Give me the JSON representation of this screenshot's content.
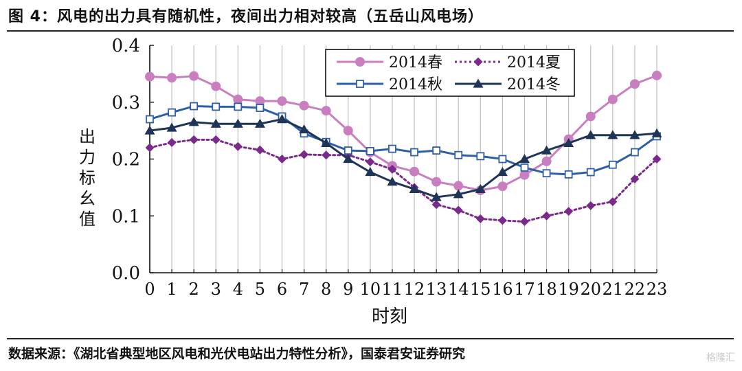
{
  "figure": {
    "title": "图 4：风电的出力具有随机性，夜间出力相对较高（五岳山风电场）",
    "source": "数据来源：《湖北省典型地区风电和光伏电站出力特性分析》，国泰君安证券研究",
    "watermark": "格隆汇"
  },
  "chart_data": {
    "type": "line",
    "title": "",
    "xlabel": "时刻",
    "ylabel": "出力标幺值",
    "x": [
      0,
      1,
      2,
      3,
      4,
      5,
      6,
      7,
      8,
      9,
      10,
      11,
      12,
      13,
      14,
      15,
      16,
      17,
      18,
      19,
      20,
      21,
      22,
      23
    ],
    "xticks": [
      "0",
      "1",
      "2",
      "3",
      "4",
      "5",
      "6",
      "7",
      "8",
      "9",
      "10",
      "11",
      "12",
      "13",
      "14",
      "15",
      "16",
      "17",
      "18",
      "19",
      "20",
      "21",
      "22",
      "23"
    ],
    "ylim": [
      0,
      0.4
    ],
    "yticks": [
      "0.0",
      "0.1",
      "0.2",
      "0.3",
      "0.4"
    ],
    "grid": "vertical",
    "legend_position": "top-center",
    "series": [
      {
        "name": "2014春",
        "color": "#c97fbf",
        "marker": "circle",
        "dash": "solid",
        "values": [
          0.345,
          0.343,
          0.346,
          0.328,
          0.305,
          0.302,
          0.302,
          0.294,
          0.285,
          0.25,
          0.212,
          0.188,
          0.178,
          0.16,
          0.153,
          0.145,
          0.152,
          0.172,
          0.196,
          0.235,
          0.275,
          0.305,
          0.332,
          0.347
        ]
      },
      {
        "name": "2014夏",
        "color": "#7a2a8a",
        "marker": "diamond",
        "dash": "dotted",
        "values": [
          0.22,
          0.229,
          0.234,
          0.234,
          0.222,
          0.216,
          0.2,
          0.208,
          0.207,
          0.207,
          0.195,
          0.182,
          0.15,
          0.12,
          0.11,
          0.095,
          0.092,
          0.09,
          0.1,
          0.108,
          0.118,
          0.125,
          0.165,
          0.2
        ]
      },
      {
        "name": "2014秋",
        "color": "#2e5fa6",
        "marker": "square",
        "dash": "solid",
        "values": [
          0.27,
          0.282,
          0.293,
          0.292,
          0.292,
          0.29,
          0.275,
          0.245,
          0.23,
          0.215,
          0.214,
          0.218,
          0.212,
          0.215,
          0.207,
          0.205,
          0.2,
          0.185,
          0.175,
          0.173,
          0.177,
          0.19,
          0.212,
          0.24
        ]
      },
      {
        "name": "2014冬",
        "color": "#1f3557",
        "marker": "triangle",
        "dash": "solid",
        "values": [
          0.25,
          0.255,
          0.265,
          0.262,
          0.262,
          0.262,
          0.27,
          0.252,
          0.228,
          0.2,
          0.177,
          0.16,
          0.147,
          0.133,
          0.138,
          0.147,
          0.177,
          0.2,
          0.215,
          0.228,
          0.242,
          0.242,
          0.242,
          0.245
        ]
      }
    ]
  }
}
